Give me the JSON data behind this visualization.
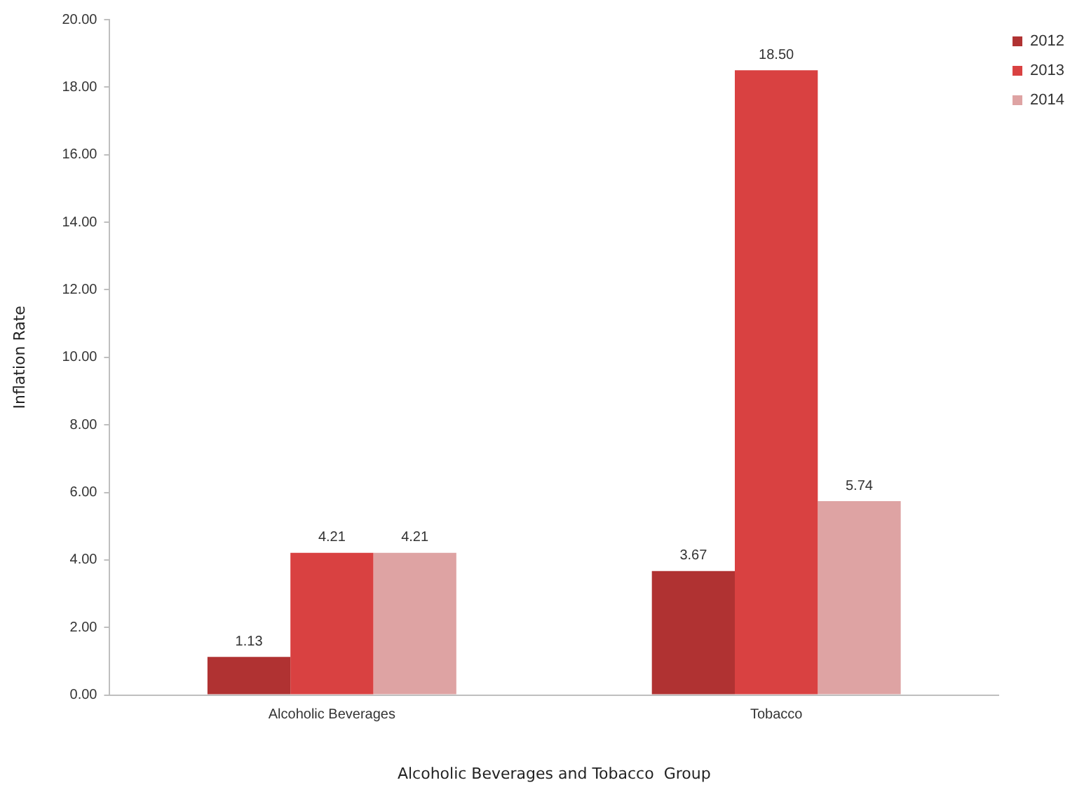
{
  "chart_data": {
    "type": "bar",
    "xlabel": "Alcoholic Beverages and Tobacco  Group",
    "ylabel": "Inflation Rate",
    "categories": [
      "Alcoholic Beverages",
      "Tobacco"
    ],
    "series": [
      {
        "name": "2012",
        "color": "#b03232",
        "values": [
          1.13,
          3.67
        ],
        "value_labels": [
          "1.13",
          "3.67"
        ]
      },
      {
        "name": "2013",
        "color": "#d94141",
        "values": [
          4.21,
          18.5
        ],
        "value_labels": [
          "4.21",
          "18.50"
        ]
      },
      {
        "name": "2014",
        "color": "#dea3a3",
        "values": [
          4.21,
          5.74
        ],
        "value_labels": [
          "4.21",
          "5.74"
        ]
      }
    ],
    "ylim": [
      0,
      20
    ],
    "yticks": [
      {
        "value": 0,
        "label": "0.00"
      },
      {
        "value": 2,
        "label": "2.00"
      },
      {
        "value": 4,
        "label": "4.00"
      },
      {
        "value": 6,
        "label": "6.00"
      },
      {
        "value": 8,
        "label": "8.00"
      },
      {
        "value": 10,
        "label": "10.00"
      },
      {
        "value": 12,
        "label": "12.00"
      },
      {
        "value": 14,
        "label": "14.00"
      },
      {
        "value": 16,
        "label": "16.00"
      },
      {
        "value": 18,
        "label": "18.00"
      },
      {
        "value": 20,
        "label": "20.00"
      }
    ],
    "grid": false,
    "legend": "top right"
  }
}
